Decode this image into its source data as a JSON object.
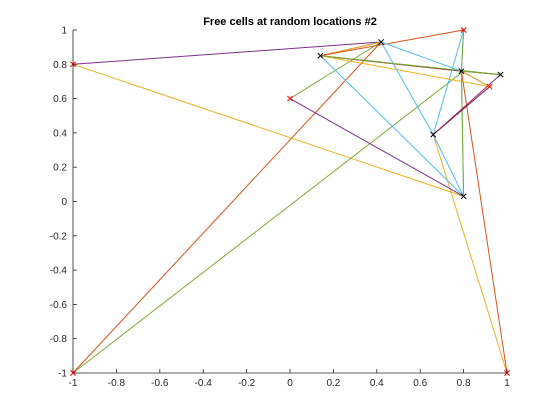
{
  "chart_data": {
    "type": "line",
    "title": "Free cells at random locations #2",
    "xlabel": "",
    "ylabel": "",
    "xlim": [
      -1,
      1
    ],
    "ylim": [
      -1,
      1
    ],
    "xticks": [
      -1,
      -0.8,
      -0.6,
      -0.4,
      -0.2,
      0,
      0.2,
      0.4,
      0.6,
      0.8,
      1
    ],
    "xtick_labels": [
      "-1",
      "-0.8",
      "-0.6",
      "-0.4",
      "-0.2",
      "0",
      "0.2",
      "0.4",
      "0.6",
      "0.8",
      "1"
    ],
    "yticks": [
      -1,
      -0.8,
      -0.6,
      -0.4,
      -0.2,
      0,
      0.2,
      0.4,
      0.6,
      0.8,
      1
    ],
    "ytick_labels": [
      "-1",
      "-0.8",
      "-0.6",
      "-0.4",
      "-0.2",
      "0",
      "0.2",
      "0.4",
      "0.6",
      "0.8",
      "1"
    ],
    "grid": false,
    "colors": {
      "axes": "#262626",
      "blue": "#4DBEEE",
      "orange": "#EDB120",
      "purple": "#7E2F8E",
      "green": "#77AC30",
      "red": "#D95319",
      "dark_red": "#A2142F",
      "black_marker": "#000000",
      "red_marker": "#FF0000"
    },
    "points": {
      "free_cells": [
        {
          "x": 1.0,
          "y": -1.0
        },
        {
          "x": -1.0,
          "y": -1.0
        },
        {
          "x": -1.0,
          "y": 0.8
        },
        {
          "x": 0.8,
          "y": 1.0
        },
        {
          "x": 0.0,
          "y": 0.6
        },
        {
          "x": 0.92,
          "y": 0.67
        }
      ],
      "nodes": [
        {
          "x": 0.42,
          "y": 0.93
        },
        {
          "x": 0.14,
          "y": 0.85
        },
        {
          "x": 0.79,
          "y": 0.76
        },
        {
          "x": 0.97,
          "y": 0.74
        },
        {
          "x": 0.66,
          "y": 0.39
        },
        {
          "x": 0.8,
          "y": 0.03
        }
      ]
    },
    "segments": [
      {
        "color": "purple",
        "x": [
          -1.0,
          0.42
        ],
        "y": [
          0.8,
          0.93
        ]
      },
      {
        "color": "orange",
        "x": [
          -1.0,
          0.8
        ],
        "y": [
          0.8,
          0.03
        ]
      },
      {
        "color": "red",
        "x": [
          -1.0,
          0.42
        ],
        "y": [
          -1.0,
          0.93
        ]
      },
      {
        "color": "green",
        "x": [
          -1.0,
          0.8
        ],
        "y": [
          -1.0,
          0.76
        ]
      },
      {
        "color": "orange",
        "x": [
          1.0,
          0.66
        ],
        "y": [
          -1.0,
          0.39
        ]
      },
      {
        "color": "red",
        "x": [
          1.0,
          0.79
        ],
        "y": [
          -1.0,
          0.76
        ]
      },
      {
        "color": "purple",
        "x": [
          0.0,
          0.8
        ],
        "y": [
          0.6,
          0.03
        ]
      },
      {
        "color": "green",
        "x": [
          0.0,
          0.42
        ],
        "y": [
          0.6,
          0.93
        ]
      },
      {
        "color": "purple",
        "x": [
          0.14,
          0.42
        ],
        "y": [
          0.85,
          0.93
        ]
      },
      {
        "color": "orange",
        "x": [
          0.14,
          0.42
        ],
        "y": [
          0.85,
          0.93
        ]
      },
      {
        "color": "red",
        "x": [
          0.14,
          0.8
        ],
        "y": [
          0.85,
          1.0
        ]
      },
      {
        "color": "blue",
        "x": [
          0.14,
          0.8
        ],
        "y": [
          0.85,
          0.03
        ]
      },
      {
        "color": "green",
        "x": [
          0.14,
          0.79
        ],
        "y": [
          0.85,
          0.76
        ]
      },
      {
        "color": "dark_red",
        "x": [
          0.14,
          0.79
        ],
        "y": [
          0.85,
          0.76
        ]
      },
      {
        "color": "orange",
        "x": [
          0.14,
          0.92
        ],
        "y": [
          0.85,
          0.67
        ]
      },
      {
        "color": "green",
        "x": [
          0.14,
          0.97
        ],
        "y": [
          0.85,
          0.74
        ]
      },
      {
        "color": "blue",
        "x": [
          0.42,
          0.79
        ],
        "y": [
          0.93,
          0.76
        ]
      },
      {
        "color": "blue",
        "x": [
          0.42,
          0.66
        ],
        "y": [
          0.93,
          0.39
        ]
      },
      {
        "color": "blue",
        "x": [
          0.8,
          0.79
        ],
        "y": [
          1.0,
          0.76
        ]
      },
      {
        "color": "blue",
        "x": [
          0.8,
          0.66
        ],
        "y": [
          1.0,
          0.39
        ]
      },
      {
        "color": "green",
        "x": [
          0.8,
          0.79
        ],
        "y": [
          1.0,
          0.76
        ]
      },
      {
        "color": "blue",
        "x": [
          0.79,
          0.8
        ],
        "y": [
          0.76,
          0.03
        ]
      },
      {
        "color": "green",
        "x": [
          0.79,
          0.8
        ],
        "y": [
          0.76,
          0.03
        ]
      },
      {
        "color": "blue",
        "x": [
          0.66,
          0.8
        ],
        "y": [
          0.39,
          0.03
        ]
      },
      {
        "color": "purple",
        "x": [
          0.66,
          0.97
        ],
        "y": [
          0.39,
          0.74
        ]
      },
      {
        "color": "dark_red",
        "x": [
          0.66,
          0.92
        ],
        "y": [
          0.39,
          0.67
        ]
      },
      {
        "color": "purple",
        "x": [
          0.79,
          0.92
        ],
        "y": [
          0.76,
          0.67
        ]
      },
      {
        "color": "dark_red",
        "x": [
          0.79,
          0.97
        ],
        "y": [
          0.76,
          0.74
        ]
      },
      {
        "color": "orange",
        "x": [
          0.79,
          0.92
        ],
        "y": [
          0.76,
          0.67
        ]
      },
      {
        "color": "green",
        "x": [
          0.79,
          0.97
        ],
        "y": [
          0.76,
          0.74
        ]
      }
    ]
  }
}
